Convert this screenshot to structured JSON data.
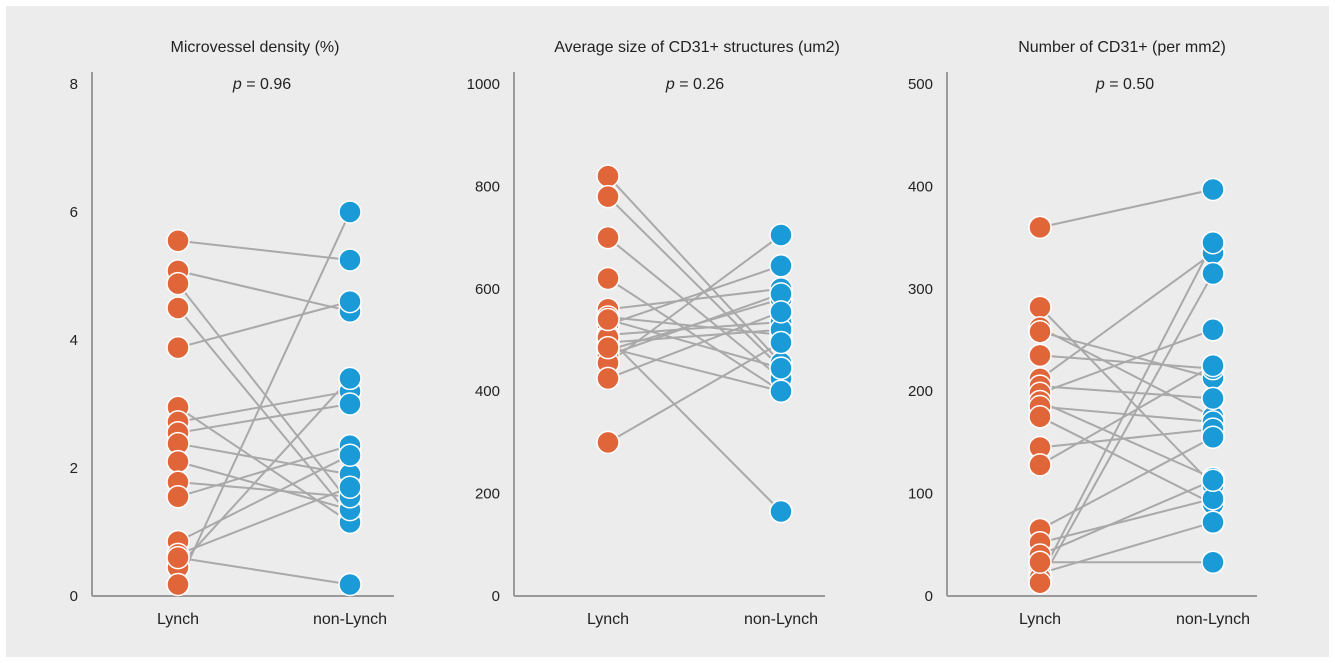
{
  "colors": {
    "lynch": "#e0663a",
    "non_lynch": "#1a9ad6",
    "connector": "#a9a9a9",
    "axis": "#9a9a9a",
    "background": "#ececed"
  },
  "chart_data": [
    {
      "type": "scatter",
      "title": "Microvessel density (%)",
      "p_prefix": "p",
      "p_suffix": " = 0.96",
      "categories": [
        "Lynch",
        "non-Lynch"
      ],
      "ylim": [
        0,
        8
      ],
      "yticks": [
        0,
        2,
        4,
        6,
        8
      ],
      "pairs": [
        [
          5.55,
          5.25
        ],
        [
          5.08,
          4.45
        ],
        [
          4.88,
          1.45
        ],
        [
          4.5,
          1.25
        ],
        [
          3.88,
          4.6
        ],
        [
          2.95,
          1.15
        ],
        [
          2.72,
          3.2
        ],
        [
          2.55,
          3.0
        ],
        [
          2.38,
          1.9
        ],
        [
          2.1,
          1.35
        ],
        [
          1.78,
          1.55
        ],
        [
          1.55,
          2.35
        ],
        [
          0.85,
          2.2
        ],
        [
          0.65,
          1.7
        ],
        [
          0.45,
          3.4
        ],
        [
          0.18,
          6.0
        ],
        [
          0.6,
          0.18
        ]
      ]
    },
    {
      "type": "scatter",
      "title": "Average size of CD31+ structures (um2)",
      "p_prefix": "p",
      "p_suffix": " = 0.26",
      "categories": [
        "Lynch",
        "non-Lynch"
      ],
      "ylim": [
        0,
        1000
      ],
      "yticks": [
        0,
        200,
        400,
        600,
        800,
        1000
      ],
      "pairs": [
        [
          820,
          455
        ],
        [
          780,
          445
        ],
        [
          700,
          425
        ],
        [
          620,
          400
        ],
        [
          560,
          600
        ],
        [
          545,
          510
        ],
        [
          530,
          645
        ],
        [
          510,
          535
        ],
        [
          495,
          520
        ],
        [
          480,
          580
        ],
        [
          470,
          590
        ],
        [
          455,
          705
        ],
        [
          425,
          555
        ],
        [
          300,
          495
        ],
        [
          505,
          165
        ],
        [
          540,
          445
        ],
        [
          485,
          400
        ]
      ]
    },
    {
      "type": "scatter",
      "title": "Number of CD31+ (per mm2)",
      "p_prefix": "p",
      "p_suffix": " = 0.50",
      "categories": [
        "Lynch",
        "non-Lynch"
      ],
      "ylim": [
        0,
        500
      ],
      "yticks": [
        0,
        100,
        200,
        300,
        400,
        500
      ],
      "pairs": [
        [
          360,
          397
        ],
        [
          282,
          108
        ],
        [
          262,
          175
        ],
        [
          258,
          213
        ],
        [
          235,
          222
        ],
        [
          212,
          335
        ],
        [
          205,
          193
        ],
        [
          198,
          260
        ],
        [
          190,
          115
        ],
        [
          185,
          170
        ],
        [
          175,
          90
        ],
        [
          145,
          163
        ],
        [
          128,
          225
        ],
        [
          65,
          155
        ],
        [
          52,
          95
        ],
        [
          40,
          113
        ],
        [
          22,
          72
        ],
        [
          18,
          345
        ],
        [
          13,
          315
        ],
        [
          33,
          33
        ]
      ]
    }
  ]
}
